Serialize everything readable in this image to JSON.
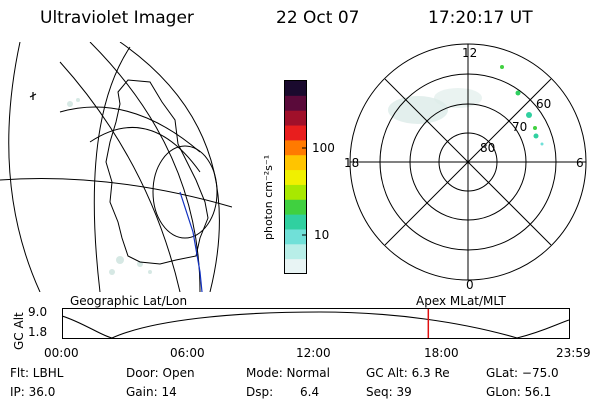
{
  "header": {
    "instrument": "Ultraviolet Imager",
    "date": "22 Oct 07",
    "time": "17:20:17 UT"
  },
  "colorbar": {
    "unit_label": "photon cm⁻²s⁻¹",
    "ticks": [
      "100",
      "10"
    ],
    "colors": [
      "#1a0a2e",
      "#5a0a3a",
      "#a0102a",
      "#e81e1e",
      "#ff7a00",
      "#ffc400",
      "#f0f000",
      "#a8e800",
      "#40d040",
      "#30d0a0",
      "#70e0d8",
      "#b8eee8",
      "#e8f4f4"
    ]
  },
  "polar_plot": {
    "mlt_labels": {
      "top": "12",
      "left": "18",
      "right": "6",
      "bottom": "0"
    },
    "lat_labels": [
      "60",
      "70",
      "80"
    ]
  },
  "map_labels": {
    "left": "Geographic Lat/Lon",
    "right": "Apex MLat/MLT"
  },
  "timeline": {
    "axis_label": "GC Alt",
    "y_ticks": [
      "9.0",
      "1.8"
    ],
    "x_ticks": [
      "00:00",
      "06:00",
      "12:00",
      "18:00",
      "23:59"
    ],
    "current_time_hours": 17.34,
    "marker_color": "#e01010"
  },
  "info": {
    "row1": {
      "flt": "Flt: LBHL",
      "door": "Door: Open",
      "mode": "Mode: Normal",
      "gcalt": "GC Alt: 6.3 Re",
      "glat": "GLat: −75.0"
    },
    "row2": {
      "ip": "IP: 36.0",
      "gain": "Gain: 14",
      "dsp_label": "Dsp:",
      "dsp_value": "6.4",
      "seq": "Seq: 39",
      "glon": "GLon: 56.1"
    }
  }
}
